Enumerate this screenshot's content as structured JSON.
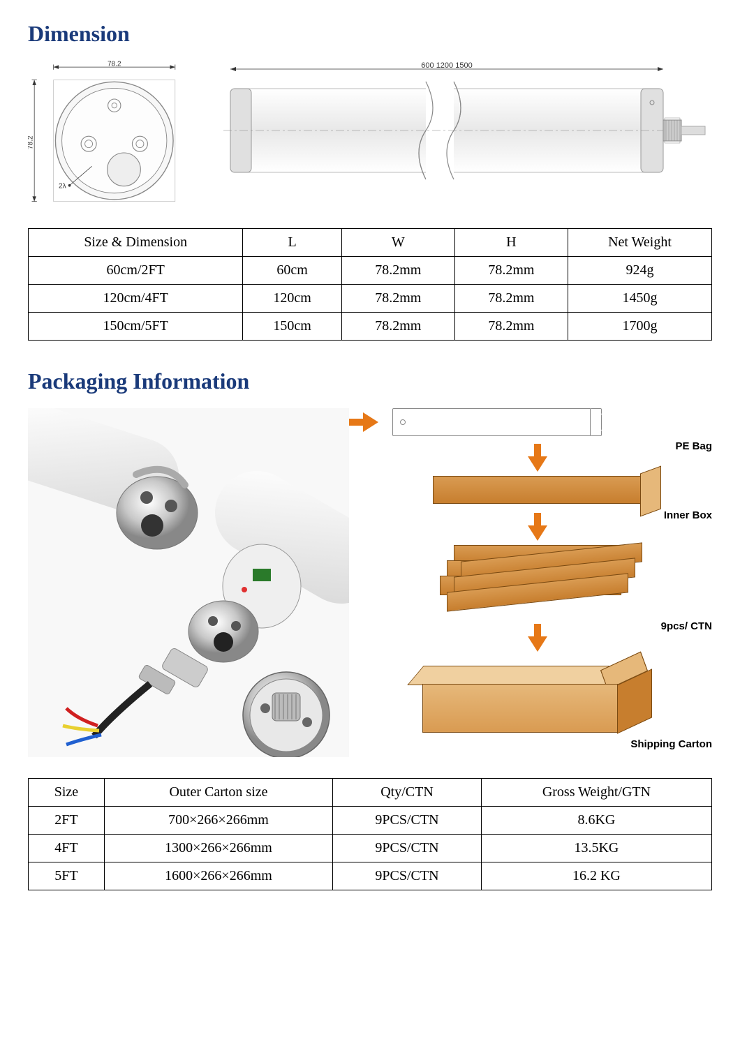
{
  "colors": {
    "heading": "#1a3a7a",
    "arrow": "#e67817",
    "box_fill": "#d99b52",
    "box_border": "#7a4a12",
    "diagram_stroke": "#888888",
    "diagram_fill": "#f2f2f2"
  },
  "section1": {
    "title": "Dimension",
    "endcap": {
      "width_label": "78.2",
      "height_label": "78.2",
      "hole_label": "2λ"
    },
    "tube": {
      "length_label": "600  1200 1500"
    },
    "table": {
      "columns": [
        "Size & Dimension",
        "L",
        "W",
        "H",
        "Net Weight"
      ],
      "rows": [
        [
          "60cm/2FT",
          "60cm",
          "78.2mm",
          "78.2mm",
          "924g"
        ],
        [
          "120cm/4FT",
          "120cm",
          "78.2mm",
          "78.2mm",
          "1450g"
        ],
        [
          "150cm/5FT",
          "150cm",
          "78.2mm",
          "78.2mm",
          "1700g"
        ]
      ]
    }
  },
  "section2": {
    "title": "Packaging Information",
    "flow_labels": {
      "pe_bag": "PE Bag",
      "inner_box": "Inner Box",
      "qty": "9pcs/ CTN",
      "shipping": "Shipping Carton"
    },
    "table": {
      "columns": [
        "Size",
        "Outer Carton size",
        "Qty/CTN",
        "Gross Weight/GTN"
      ],
      "rows": [
        [
          "2FT",
          "700×266×266mm",
          "9PCS/CTN",
          "8.6KG"
        ],
        [
          "4FT",
          "1300×266×266mm",
          "9PCS/CTN",
          "13.5KG"
        ],
        [
          "5FT",
          "1600×266×266mm",
          "9PCS/CTN",
          "16.2 KG"
        ]
      ]
    }
  }
}
